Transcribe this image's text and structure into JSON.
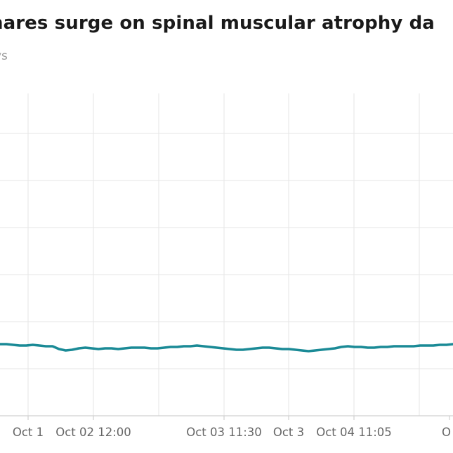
{
  "chart_data": {
    "type": "line",
    "title": "hares surge on spinal muscular atrophy da",
    "subtitle": "ys",
    "xlabel": "",
    "ylabel": "",
    "x_tick_labels": [
      "Oct 1",
      "Oct 02 12:00",
      "Oct 03 11:30",
      "Oct 3",
      "Oct 04 11:05",
      "O"
    ],
    "grid": true,
    "legend": "none",
    "colors": {
      "line": "#1a8a96",
      "grid": "#e6e6e6",
      "axis": "#d0d0d0",
      "tick_text": "#666666"
    },
    "series": [
      {
        "values": [
          490,
          490,
          491,
          492,
          492,
          491,
          492,
          493,
          493,
          497,
          499,
          498,
          496,
          495,
          496,
          497,
          496,
          496,
          497,
          496,
          495,
          495,
          495,
          496,
          496,
          495,
          494,
          494,
          493,
          493,
          492,
          493,
          494,
          495,
          496,
          497,
          498,
          498,
          497,
          496,
          495,
          495,
          496,
          497,
          497,
          498,
          499,
          500,
          499,
          498,
          497,
          496,
          494,
          493,
          494,
          494,
          495,
          495,
          494,
          494,
          493,
          493,
          493,
          493,
          492,
          492,
          492,
          491,
          491,
          490
        ]
      }
    ]
  }
}
